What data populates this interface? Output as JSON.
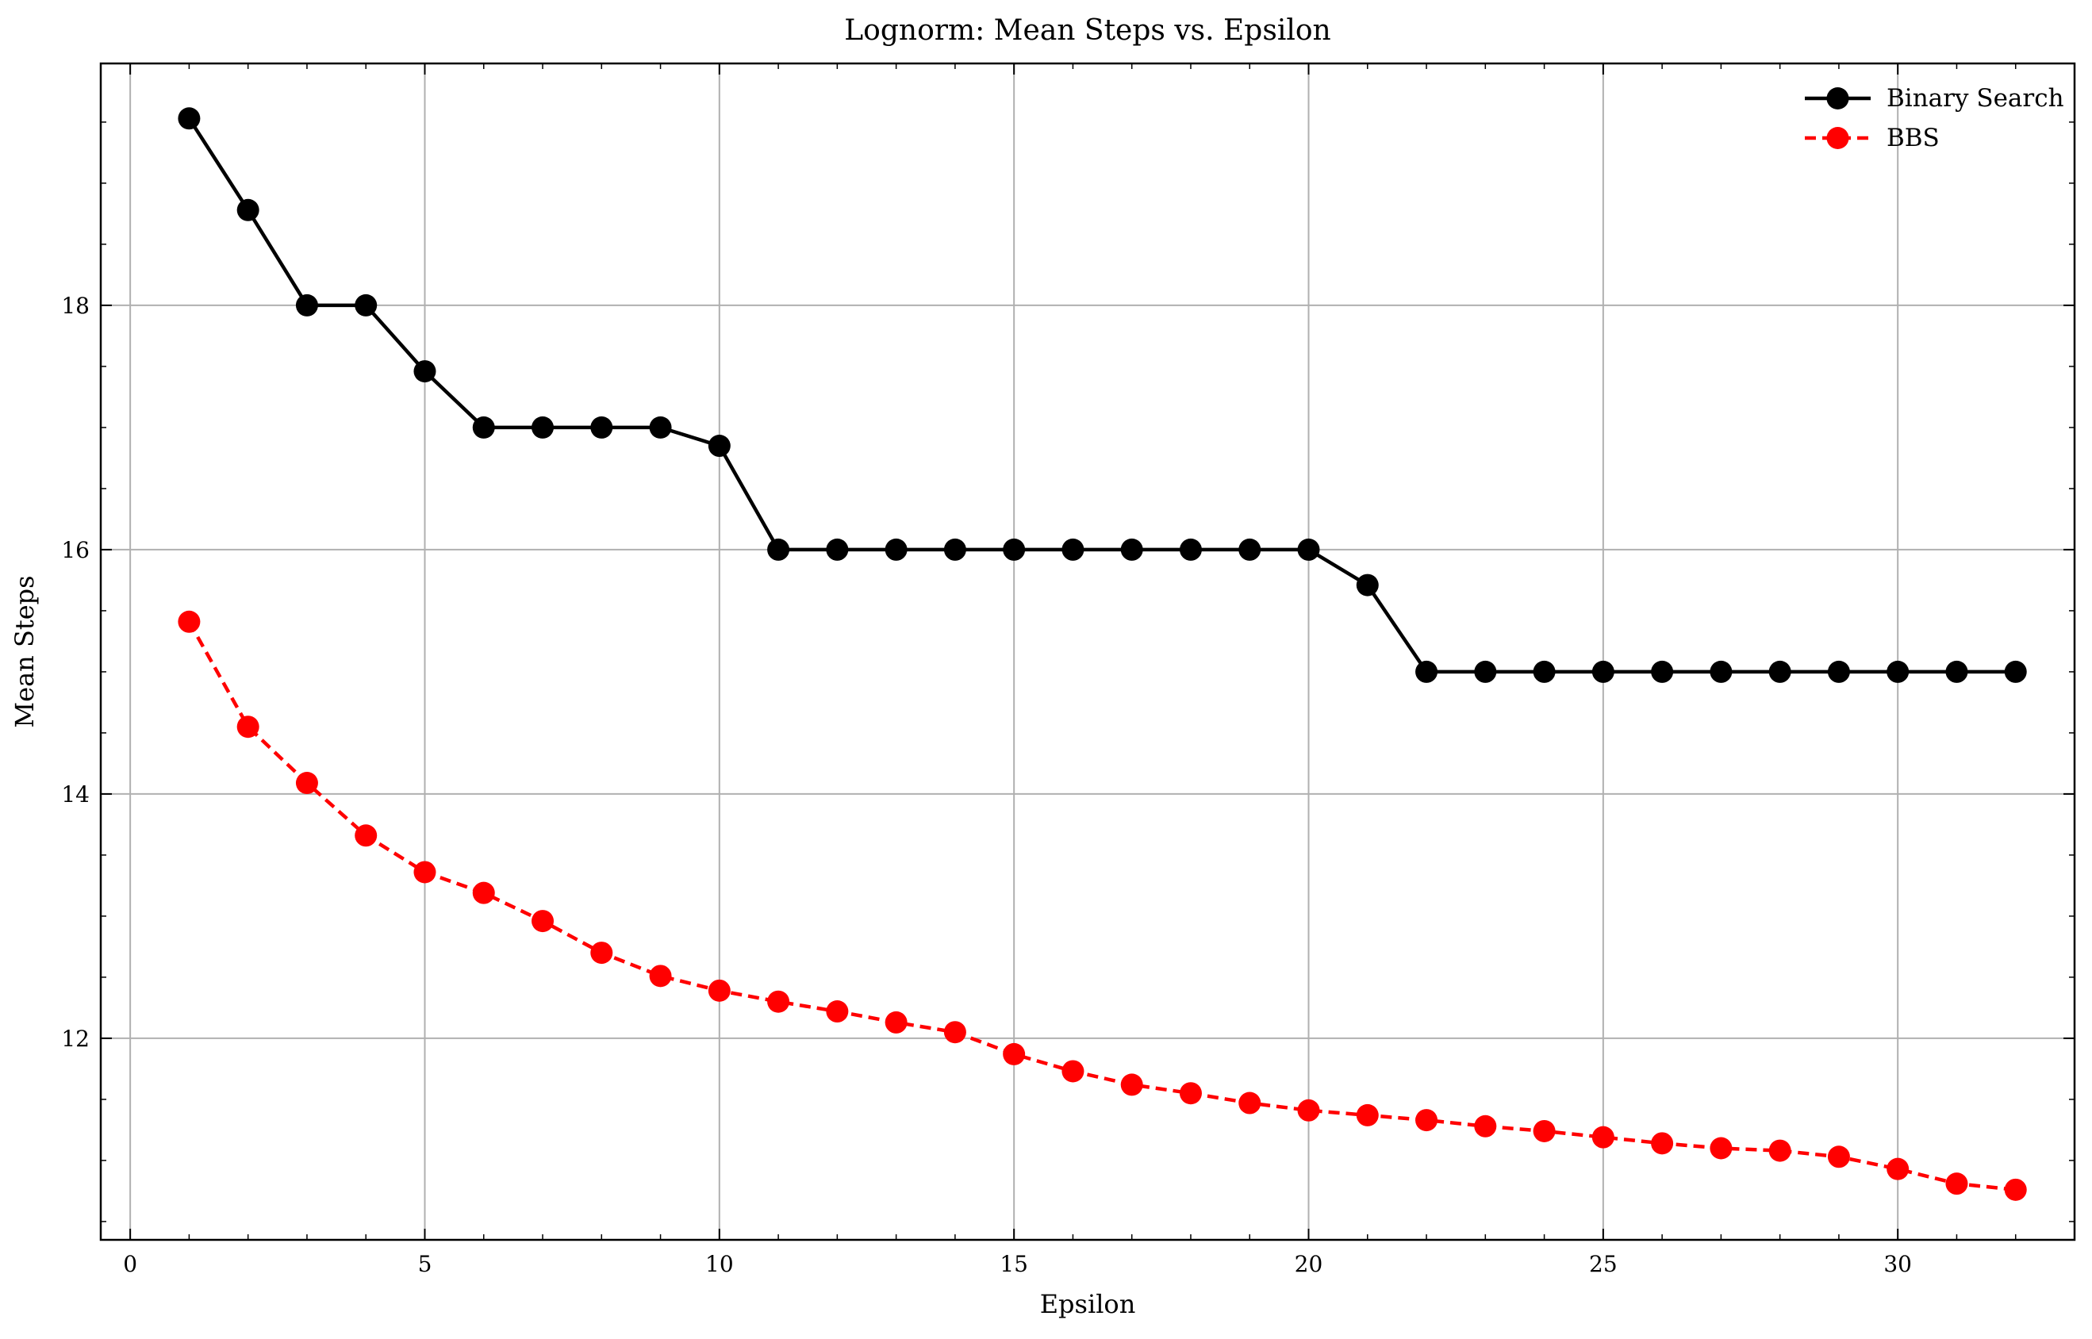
{
  "chart_data": {
    "type": "line",
    "title": "Lognorm: Mean Steps vs. Epsilon",
    "xlabel": "Epsilon",
    "ylabel": "Mean Steps",
    "xlim": [
      -0.5,
      33.0
    ],
    "ylim": [
      10.35,
      19.98
    ],
    "x_ticks": [
      0,
      5,
      10,
      15,
      20,
      25,
      30
    ],
    "y_ticks": [
      12,
      14,
      16,
      18
    ],
    "grid": true,
    "legend_position": "top-right",
    "x": [
      1,
      2,
      3,
      4,
      5,
      6,
      7,
      8,
      9,
      10,
      11,
      12,
      13,
      14,
      15,
      16,
      17,
      18,
      19,
      20,
      21,
      22,
      23,
      24,
      25,
      26,
      27,
      28,
      29,
      30,
      31,
      32
    ],
    "series": [
      {
        "name": "Binary Search",
        "color": "#000000",
        "line_style": "solid",
        "marker": "circle",
        "values": [
          19.53,
          18.78,
          18.0,
          18.0,
          17.46,
          17.0,
          17.0,
          17.0,
          17.0,
          16.85,
          16.0,
          16.0,
          16.0,
          16.0,
          16.0,
          16.0,
          16.0,
          16.0,
          16.0,
          16.0,
          15.71,
          15.0,
          15.0,
          15.0,
          15.0,
          15.0,
          15.0,
          15.0,
          15.0,
          15.0,
          15.0,
          15.0
        ]
      },
      {
        "name": "BBS",
        "color": "#ff0000",
        "line_style": "dashed",
        "marker": "circle",
        "values": [
          15.41,
          14.55,
          14.09,
          13.66,
          13.36,
          13.19,
          12.96,
          12.7,
          12.51,
          12.39,
          12.3,
          12.22,
          12.13,
          12.05,
          11.87,
          11.73,
          11.62,
          11.55,
          11.47,
          11.41,
          11.37,
          11.33,
          11.28,
          11.24,
          11.19,
          11.14,
          11.1,
          11.08,
          11.03,
          10.93,
          10.81,
          10.76
        ]
      }
    ]
  }
}
